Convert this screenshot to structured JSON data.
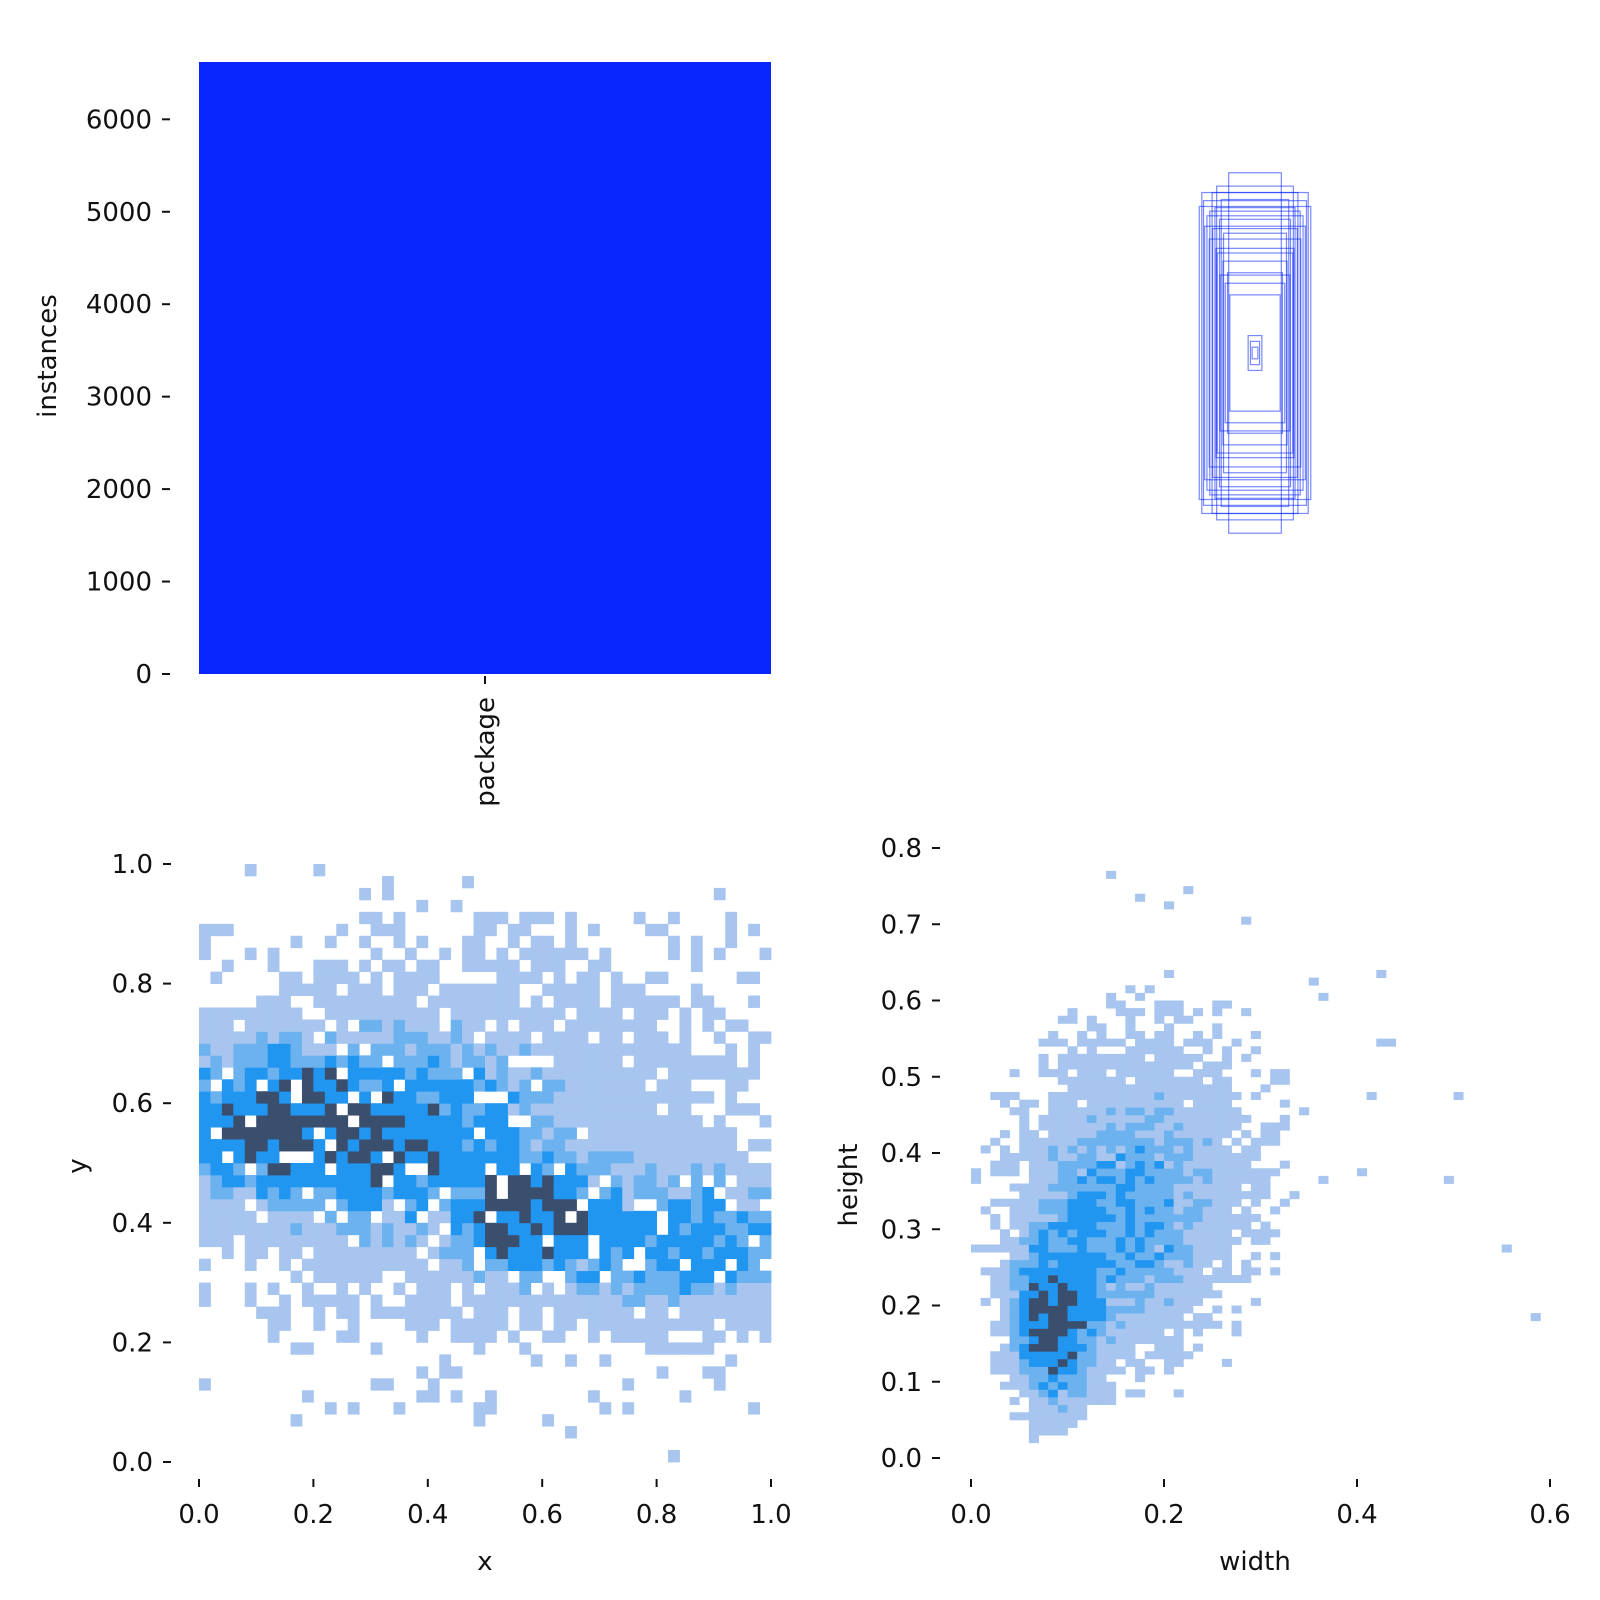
{
  "palette": {
    "bar": "#0a26ff",
    "box_stroke": "#0a26ff",
    "bins": [
      "#a7c5ef",
      "#6cb2ef",
      "#2196f1",
      "#3a4f6e"
    ]
  },
  "chart_data": [
    {
      "id": "instances-bar",
      "type": "bar",
      "categories": [
        "package"
      ],
      "values": [
        6620
      ],
      "ylabel": "instances",
      "ylim": [
        0,
        6620
      ],
      "yticks": [
        0,
        1000,
        2000,
        3000,
        4000,
        5000,
        6000
      ],
      "ytick_labels": [
        "0",
        "1000",
        "2000",
        "3000",
        "4000",
        "5000",
        "6000"
      ],
      "xtick_labels": [
        "package"
      ],
      "grid": false
    },
    {
      "id": "box-overlay",
      "type": "scatter",
      "note_kind": "label-box outlines centered at 0.5, 0.5",
      "boxes_wh": [
        [
          0.092,
          0.31
        ],
        [
          0.15,
          0.276
        ],
        [
          0.195,
          0.252
        ],
        [
          0.134,
          0.287
        ],
        [
          0.168,
          0.236
        ],
        [
          0.18,
          0.262
        ],
        [
          0.124,
          0.23
        ],
        [
          0.148,
          0.214
        ],
        [
          0.16,
          0.196
        ],
        [
          0.136,
          0.18
        ],
        [
          0.112,
          0.158
        ],
        [
          0.122,
          0.134
        ],
        [
          0.104,
          0.12
        ],
        [
          0.088,
          0.1
        ],
        [
          0.096,
          0.138
        ],
        [
          0.14,
          0.25
        ],
        [
          0.176,
          0.218
        ],
        [
          0.158,
          0.244
        ],
        [
          0.11,
          0.206
        ],
        [
          0.132,
          0.172
        ],
        [
          0.024,
          0.03
        ],
        [
          0.016,
          0.02
        ],
        [
          0.01,
          0.01
        ],
        [
          0.186,
          0.276
        ],
        [
          0.118,
          0.264
        ]
      ],
      "grid": false
    },
    {
      "id": "xy-heatmap",
      "type": "heatmap",
      "xlabel": "x",
      "ylabel": "y",
      "xlim": [
        0,
        1
      ],
      "ylim": [
        0,
        1
      ],
      "xticks": [
        0,
        0.2,
        0.4,
        0.6,
        0.8,
        1
      ],
      "xtick_labels": [
        "0.0",
        "0.2",
        "0.4",
        "0.6",
        "0.8",
        "1.0"
      ],
      "yticks": [
        0,
        0.2,
        0.4,
        0.6,
        0.8,
        1
      ],
      "ytick_labels": [
        "0.0",
        "0.2",
        "0.4",
        "0.6",
        "0.8",
        "1.0"
      ],
      "bins": 50,
      "density_centers": [
        {
          "x": 0.1,
          "y": 0.57,
          "sx": 0.12,
          "sy": 0.07,
          "w": 1.0
        },
        {
          "x": 0.32,
          "y": 0.55,
          "sx": 0.15,
          "sy": 0.09,
          "w": 0.9
        },
        {
          "x": 0.57,
          "y": 0.41,
          "sx": 0.07,
          "sy": 0.06,
          "w": 1.3
        },
        {
          "x": 0.85,
          "y": 0.37,
          "sx": 0.13,
          "sy": 0.07,
          "w": 0.8
        },
        {
          "x": 0.5,
          "y": 0.55,
          "sx": 0.35,
          "sy": 0.25,
          "w": 0.25
        }
      ],
      "grid": false
    },
    {
      "id": "wh-heatmap",
      "type": "heatmap",
      "xlabel": "width",
      "ylabel": "height",
      "xlim": [
        0,
        0.6
      ],
      "ylim": [
        0,
        0.8
      ],
      "xticks": [
        0,
        0.2,
        0.4,
        0.6
      ],
      "xtick_labels": [
        "0.0",
        "0.2",
        "0.4",
        "0.6"
      ],
      "yticks": [
        0,
        0.1,
        0.2,
        0.3,
        0.4,
        0.5,
        0.6,
        0.7,
        0.8
      ],
      "ytick_labels": [
        "0.0",
        "0.1",
        "0.2",
        "0.3",
        "0.4",
        "0.5",
        "0.6",
        "0.7",
        "0.8"
      ],
      "bins_x": 60,
      "bins_y": 70,
      "density_centers": [
        {
          "x": 0.085,
          "y": 0.17,
          "sx": 0.025,
          "sy": 0.06,
          "w": 1.6
        },
        {
          "x": 0.14,
          "y": 0.28,
          "sx": 0.06,
          "sy": 0.1,
          "w": 0.6
        },
        {
          "x": 0.19,
          "y": 0.4,
          "sx": 0.08,
          "sy": 0.12,
          "w": 0.35
        }
      ],
      "outliers": [
        [
          0.58,
          0.18
        ],
        [
          0.55,
          0.27
        ],
        [
          0.49,
          0.36
        ],
        [
          0.5,
          0.47
        ],
        [
          0.43,
          0.54
        ],
        [
          0.42,
          0.54
        ],
        [
          0.41,
          0.47
        ],
        [
          0.42,
          0.63
        ],
        [
          0.36,
          0.6
        ],
        [
          0.35,
          0.62
        ],
        [
          0.28,
          0.7
        ],
        [
          0.22,
          0.74
        ],
        [
          0.2,
          0.72
        ],
        [
          0.17,
          0.73
        ],
        [
          0.14,
          0.76
        ],
        [
          0.4,
          0.37
        ],
        [
          0.36,
          0.36
        ],
        [
          0.27,
          0.16
        ],
        [
          0.26,
          0.12
        ],
        [
          0.1,
          0.04
        ]
      ],
      "grid": false
    }
  ]
}
